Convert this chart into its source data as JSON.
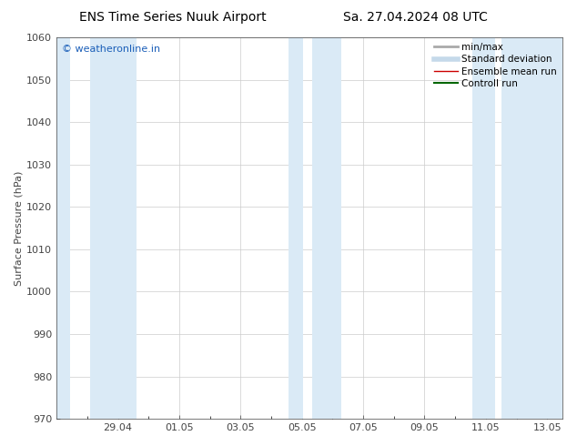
{
  "title_left": "ENS Time Series Nuuk Airport",
  "title_right": "Sa. 27.04.2024 08 UTC",
  "ylabel": "Surface Pressure (hPa)",
  "ylim": [
    970,
    1060
  ],
  "yticks": [
    970,
    980,
    990,
    1000,
    1010,
    1020,
    1030,
    1040,
    1050,
    1060
  ],
  "xtick_labels": [
    "29.04",
    "01.05",
    "03.05",
    "05.05",
    "07.05",
    "09.05",
    "11.05",
    "13.05"
  ],
  "xlim": [
    0,
    16.5
  ],
  "xtick_positions": [
    2,
    4,
    6,
    8,
    10,
    12,
    14,
    16
  ],
  "shaded_bands": [
    {
      "x_start": 0.0,
      "x_end": 0.6
    },
    {
      "x_start": 0.9,
      "x_end": 2.5
    },
    {
      "x_start": 7.5,
      "x_end": 8.0
    },
    {
      "x_start": 8.3,
      "x_end": 9.2
    },
    {
      "x_start": 13.5,
      "x_end": 14.2
    },
    {
      "x_start": 14.5,
      "x_end": 16.5
    }
  ],
  "shade_color": "#daeaf6",
  "watermark": "© weatheronline.in",
  "watermark_color": "#1a5eb8",
  "background_color": "#ffffff",
  "grid_color": "#cccccc",
  "tick_color": "#444444",
  "font_size": 8,
  "title_font_size": 10,
  "legend_font_size": 7.5,
  "minmax_color": "#aaaaaa",
  "stddev_color": "#c5d9ea",
  "ensemble_color": "#cc0000",
  "control_color": "#006600"
}
